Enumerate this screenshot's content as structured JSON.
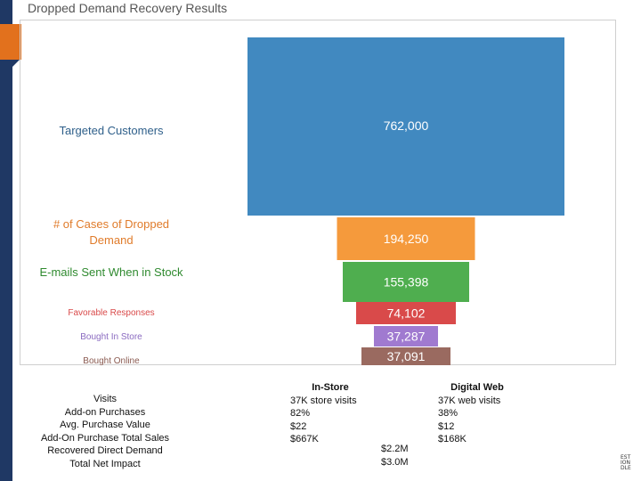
{
  "title": "Dropped Demand Recovery Results",
  "colors": {
    "accent_orange": "#e2711d",
    "dark_strip": "#1f3864"
  },
  "chart_data": {
    "type": "funnel",
    "title": "Dropped Demand Recovery Results",
    "stages": [
      {
        "label": "Targeted Customers",
        "value": 762000,
        "value_label": "762,000",
        "color": "#4189c0",
        "label_color": "#2e5f8a"
      },
      {
        "label": "# of Cases of Dropped Demand",
        "value": 194250,
        "value_label": "194,250",
        "color": "#f59a3c",
        "label_color": "#e07b2a"
      },
      {
        "label": "E-mails Sent When in Stock",
        "value": 155398,
        "value_label": "155,398",
        "color": "#4fae4f",
        "label_color": "#2f8a2f"
      },
      {
        "label": "Favorable Responses",
        "value": 74102,
        "value_label": "74,102",
        "color": "#d94a4a",
        "label_color": "#d94a4a"
      },
      {
        "label": "Bought In Store",
        "value": 37287,
        "value_label": "37,287",
        "color": "#a07ad0",
        "label_color": "#8a6ac0"
      },
      {
        "label": "Bought Online",
        "value": 37091,
        "value_label": "37,091",
        "color": "#9a6a60",
        "label_color": "#8a5a50"
      }
    ]
  },
  "summary": {
    "row_labels": [
      "Visits",
      "Add-on Purchases",
      "Avg. Purchase Value",
      "Add-On Purchase Total Sales",
      "Recovered Direct Demand",
      "Total Net Impact"
    ],
    "in_store": {
      "header": "In-Store",
      "visits": "37K store visits",
      "addon": "82%",
      "avg_value": "$22",
      "total_sales": "$667K"
    },
    "digital": {
      "header": "Digital Web",
      "visits": "37K web visits",
      "addon": "38%",
      "avg_value": "$12",
      "total_sales": "$168K"
    },
    "recovered_direct_demand": "$2.2M",
    "total_net_impact": "$3.0M"
  },
  "logo_text": [
    "EST",
    "ION",
    "DLE"
  ]
}
